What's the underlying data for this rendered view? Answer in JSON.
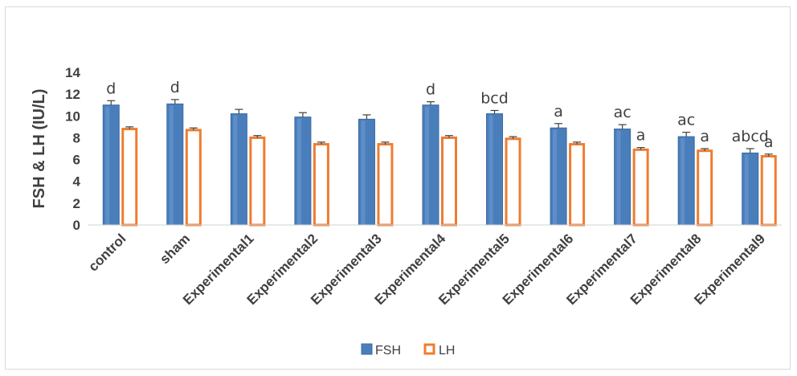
{
  "chart_data": {
    "type": "bar",
    "title": "",
    "xlabel": "",
    "ylabel": "FSH & LH (IU/L)",
    "ylim": [
      0,
      14
    ],
    "yticks": [
      0,
      2,
      4,
      6,
      8,
      10,
      12,
      14
    ],
    "grid": false,
    "legend_position": "bottom",
    "categories": [
      "control",
      "sham",
      "Experimental1",
      "Experimental2",
      "Experimental3",
      "Experimental4",
      "Experimental5",
      "Experimental6",
      "Experimental7",
      "Experimental8",
      "Experimental9"
    ],
    "series": [
      {
        "name": "FSH",
        "color": "#4a7ebb",
        "fill": "solid",
        "values": [
          11.0,
          11.1,
          10.2,
          9.9,
          9.7,
          11.0,
          10.2,
          8.9,
          8.8,
          8.1,
          6.6
        ],
        "errors": [
          0.4,
          0.4,
          0.4,
          0.4,
          0.4,
          0.3,
          0.3,
          0.4,
          0.4,
          0.4,
          0.4
        ],
        "labels": [
          "d",
          "d",
          "",
          "",
          "",
          "d",
          "bcd",
          "a",
          "ac",
          "ac",
          "abcd"
        ]
      },
      {
        "name": "LH",
        "color": "#ed7d31",
        "fill": "outline",
        "values": [
          8.8,
          8.7,
          8.0,
          7.4,
          7.4,
          8.0,
          7.9,
          7.4,
          6.9,
          6.8,
          6.3
        ],
        "errors": [
          0.2,
          0.2,
          0.2,
          0.2,
          0.2,
          0.2,
          0.2,
          0.2,
          0.2,
          0.2,
          0.2
        ],
        "labels": [
          "",
          "",
          "",
          "",
          "",
          "",
          "",
          "",
          "a",
          "a",
          "a"
        ]
      }
    ]
  }
}
